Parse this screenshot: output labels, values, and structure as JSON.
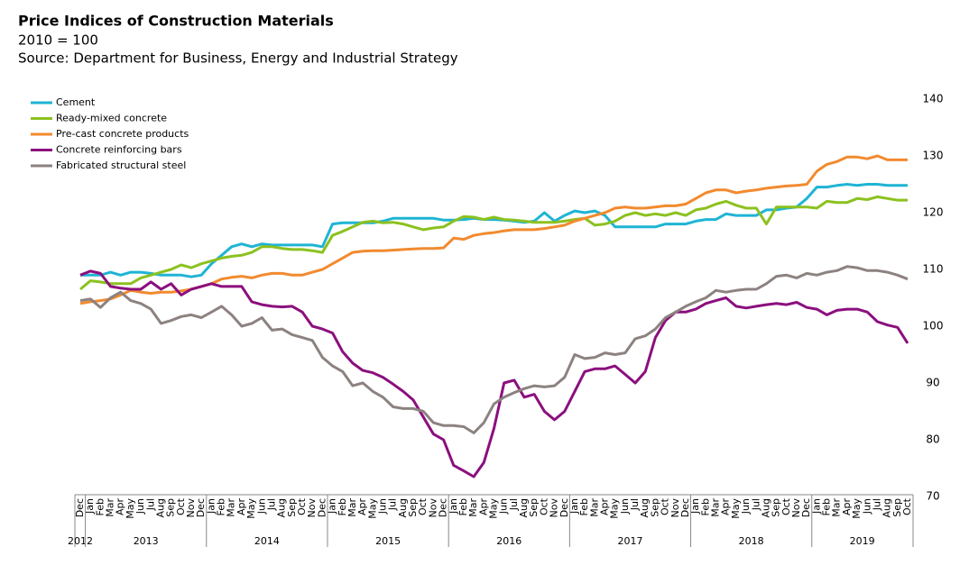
{
  "chart_data": {
    "type": "line",
    "title": "Price Indices of Construction Materials",
    "subtitle": "2010 = 100",
    "source": "Source: Department for Business, Energy and Industrial Strategy",
    "categories": [
      "Dec",
      "Jan",
      "Feb",
      "Mar",
      "Apr",
      "May",
      "Jun",
      "Jul",
      "Aug",
      "Sep",
      "Oct",
      "Nov",
      "Dec",
      "Jan",
      "Feb",
      "Mar",
      "Apr",
      "May",
      "Jun",
      "Jul",
      "Aug",
      "Sep",
      "Oct",
      "Nov",
      "Dec",
      "Jan",
      "Feb",
      "Mar",
      "Apr",
      "May",
      "Jun",
      "Jul",
      "Aug",
      "Sep",
      "Oct",
      "Nov",
      "Dec",
      "Jan",
      "Feb",
      "Mar",
      "Apr",
      "May",
      "Jun",
      "Jul",
      "Aug",
      "Sep",
      "Oct",
      "Nov",
      "Dec",
      "Jan",
      "Feb",
      "Mar",
      "Apr",
      "May",
      "Jun",
      "Jul",
      "Aug",
      "Sep",
      "Oct",
      "Nov",
      "Dec",
      "Jan",
      "Feb",
      "Mar",
      "Apr",
      "May",
      "Jun",
      "Jul",
      "Aug",
      "Sep",
      "Oct",
      "Nov",
      "Dec",
      "Jan",
      "Feb",
      "Mar",
      "Apr",
      "May",
      "Jun",
      "Jul",
      "Aug",
      "Sep",
      "Oct"
    ],
    "years": [
      "2012",
      "2013",
      "2014",
      "2015",
      "2016",
      "2017",
      "2018",
      "2019"
    ],
    "ylim": [
      70,
      140
    ],
    "yticks": [
      70,
      80,
      90,
      100,
      110,
      120,
      130,
      140
    ],
    "legend": "top-left",
    "series": [
      {
        "name": "Cement",
        "color": "#1fb4d4",
        "values": [
          109,
          109,
          109,
          109.5,
          109,
          109.5,
          109.5,
          109.3,
          109,
          109,
          109,
          108.7,
          109,
          111,
          112.5,
          114,
          114.5,
          114,
          114.5,
          114.3,
          114.3,
          114.3,
          114.3,
          114.3,
          114,
          118,
          118.2,
          118.2,
          118.2,
          118.2,
          118.5,
          119,
          119,
          119,
          119,
          119,
          118.7,
          118.7,
          118.8,
          119,
          118.8,
          118.8,
          118.7,
          118.5,
          118.3,
          118.5,
          120,
          118.5,
          119.5,
          120.3,
          120,
          120.3,
          119.5,
          117.5,
          117.5,
          117.5,
          117.5,
          117.5,
          118,
          118,
          118,
          118.5,
          118.8,
          118.8,
          119.8,
          119.5,
          119.5,
          119.5,
          120.5,
          120.5,
          120.8,
          121,
          122.5,
          124.5,
          124.5,
          124.8,
          125,
          124.8,
          125,
          125,
          124.8,
          124.8,
          124.8
        ]
      },
      {
        "name": "Ready-mixed concrete",
        "color": "#8cc11f",
        "values": [
          106.5,
          108,
          107.8,
          107.5,
          107.5,
          107.5,
          108.5,
          109,
          109.5,
          110,
          110.8,
          110.3,
          111,
          111.5,
          112,
          112.3,
          112.5,
          113,
          114,
          114,
          113.7,
          113.5,
          113.5,
          113.3,
          113,
          116,
          116.7,
          117.5,
          118.3,
          118.5,
          118.2,
          118.3,
          118,
          117.5,
          117,
          117.3,
          117.5,
          118.5,
          119.3,
          119.2,
          118.8,
          119.2,
          118.8,
          118.7,
          118.5,
          118.3,
          118.3,
          118.3,
          118.5,
          118.8,
          119,
          117.8,
          118,
          118.5,
          119.5,
          120,
          119.5,
          119.8,
          119.5,
          120,
          119.5,
          120.5,
          120.8,
          121.5,
          122,
          121.3,
          120.8,
          120.8,
          118,
          121,
          121,
          121,
          121,
          120.8,
          122,
          121.8,
          121.8,
          122.5,
          122.3,
          122.8,
          122.5,
          122.2,
          122.2
        ]
      },
      {
        "name": "Pre-cast concrete products",
        "color": "#f28a2e",
        "values": [
          104,
          104.3,
          104.5,
          104.8,
          105.5,
          106.3,
          106,
          105.8,
          106,
          106,
          106.2,
          106.5,
          107,
          107.5,
          108.3,
          108.6,
          108.8,
          108.5,
          109,
          109.3,
          109.3,
          109,
          109,
          109.5,
          110,
          111,
          112,
          113,
          113.2,
          113.3,
          113.3,
          113.4,
          113.5,
          113.6,
          113.7,
          113.7,
          113.8,
          115.5,
          115.3,
          116,
          116.3,
          116.5,
          116.8,
          117,
          117,
          117,
          117.2,
          117.5,
          117.8,
          118.5,
          119,
          119.5,
          120,
          120.8,
          121,
          120.8,
          120.8,
          121,
          121.2,
          121.2,
          121.5,
          122.5,
          123.5,
          124,
          124,
          123.5,
          123.8,
          124,
          124.3,
          124.5,
          124.7,
          124.8,
          125,
          127.3,
          128.5,
          129,
          129.8,
          129.8,
          129.5,
          130,
          129.3,
          129.3,
          129.3
        ]
      },
      {
        "name": "Concrete reinforcing bars",
        "color": "#8b0f7e",
        "values": [
          109,
          109.7,
          109.3,
          107,
          106.7,
          106.5,
          106.5,
          107.8,
          106.5,
          107.5,
          105.5,
          106.5,
          107,
          107.5,
          107,
          107,
          107,
          104.3,
          103.8,
          103.5,
          103.4,
          103.5,
          102.5,
          100,
          99.5,
          98.8,
          95.5,
          93.5,
          92.2,
          91.8,
          91,
          89.8,
          88.5,
          87,
          84,
          81,
          80,
          75.5,
          74.5,
          73.5,
          76,
          82,
          90,
          90.5,
          87.5,
          88,
          85,
          83.5,
          85,
          88.5,
          92,
          92.5,
          92.5,
          93,
          91.5,
          90,
          92,
          98,
          101,
          102.5,
          102.5,
          103,
          104,
          104.5,
          105,
          103.5,
          103.2,
          103.5,
          103.8,
          104,
          103.8,
          104.2,
          103.3,
          103,
          102,
          102.8,
          103,
          103,
          102.5,
          100.8,
          100.2,
          99.8,
          97
        ]
      },
      {
        "name": "Fabricated structural steel",
        "color": "#8c8280",
        "values": [
          104.5,
          104.8,
          103.3,
          105,
          106,
          104.5,
          104,
          103,
          100.5,
          101,
          101.7,
          102,
          101.5,
          102.5,
          103.5,
          102,
          100,
          100.5,
          101.5,
          99.3,
          99.5,
          98.5,
          98,
          97.5,
          94.5,
          93,
          92,
          89.5,
          90,
          88.5,
          87.5,
          85.8,
          85.5,
          85.5,
          85,
          83,
          82.5,
          82.5,
          82.3,
          81.2,
          83,
          86.3,
          87.5,
          88.3,
          89,
          89.5,
          89.3,
          89.5,
          91,
          95,
          94.3,
          94.5,
          95.3,
          95,
          95.3,
          97.8,
          98.3,
          99.5,
          101.5,
          102.5,
          103.5,
          104.3,
          105,
          106.3,
          106,
          106.3,
          106.5,
          106.5,
          107.5,
          108.8,
          109,
          108.5,
          109.3,
          109,
          109.5,
          109.8,
          110.5,
          110.3,
          109.8,
          109.8,
          109.5,
          109,
          108.3
        ]
      }
    ]
  }
}
